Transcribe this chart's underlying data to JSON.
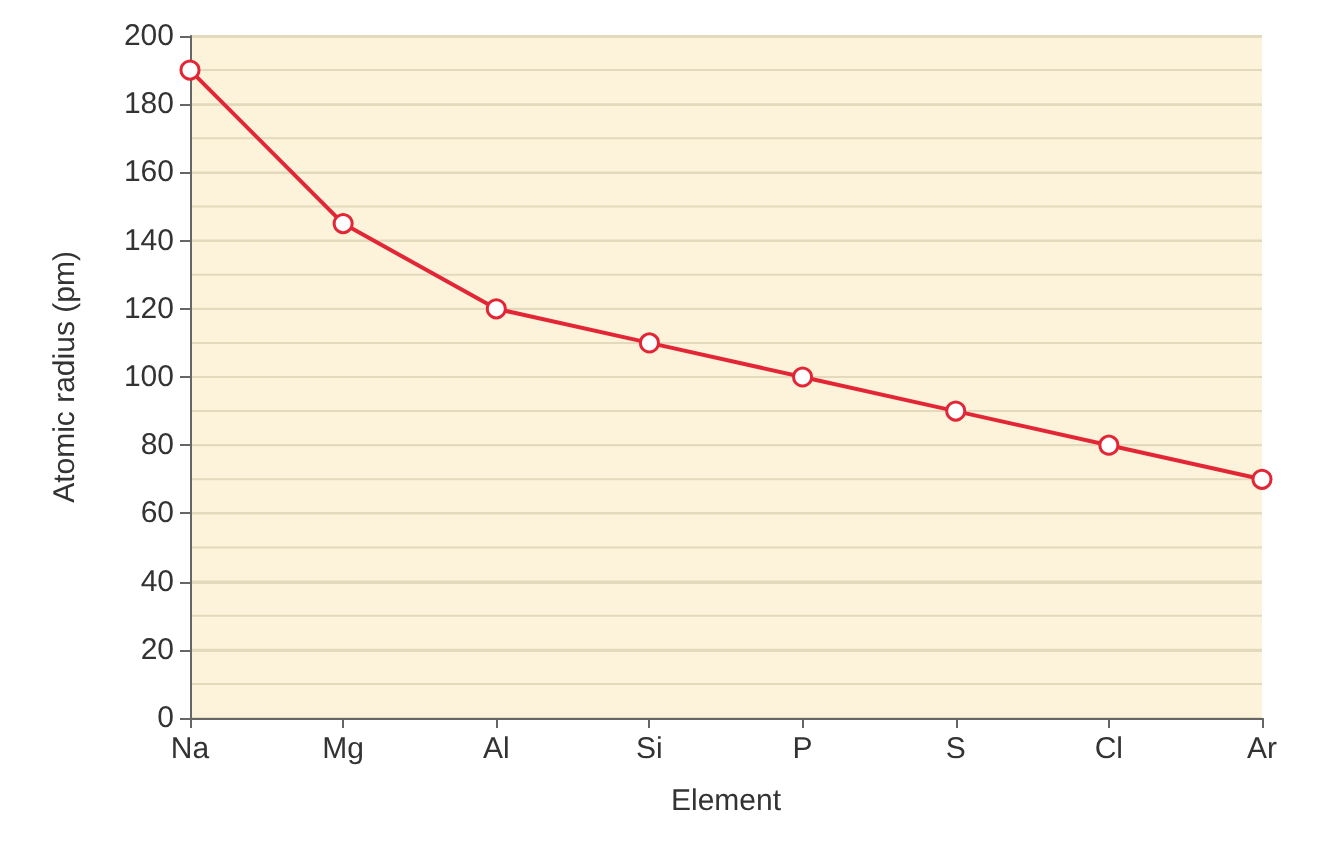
{
  "chart_data": {
    "type": "line",
    "xlabel": "Element",
    "ylabel": "Atomic radius (pm)",
    "categories": [
      "Na",
      "Mg",
      "Al",
      "Si",
      "P",
      "S",
      "Cl",
      "Ar"
    ],
    "series": [
      {
        "color": "#e32636",
        "values": [
          190,
          145,
          120,
          110,
          100,
          90,
          80,
          70
        ]
      }
    ],
    "ylim": [
      0,
      200
    ],
    "yticks": [
      0,
      {
        "value": 10,
        "label": null
      },
      20,
      {
        "value": 30,
        "label": null
      },
      40,
      {
        "value": 50,
        "label": null
      },
      60,
      {
        "value": 70,
        "label": null
      },
      80,
      {
        "value": 90,
        "label": null
      },
      100,
      {
        "value": 110,
        "label": null
      },
      120,
      {
        "value": 130,
        "label": null
      },
      140,
      {
        "value": 150,
        "label": null
      },
      160,
      {
        "value": 170,
        "label": null
      },
      180,
      {
        "value": 190,
        "label": null
      },
      200
    ],
    "grid": "y",
    "marker": "circle",
    "line_style": "solid"
  }
}
